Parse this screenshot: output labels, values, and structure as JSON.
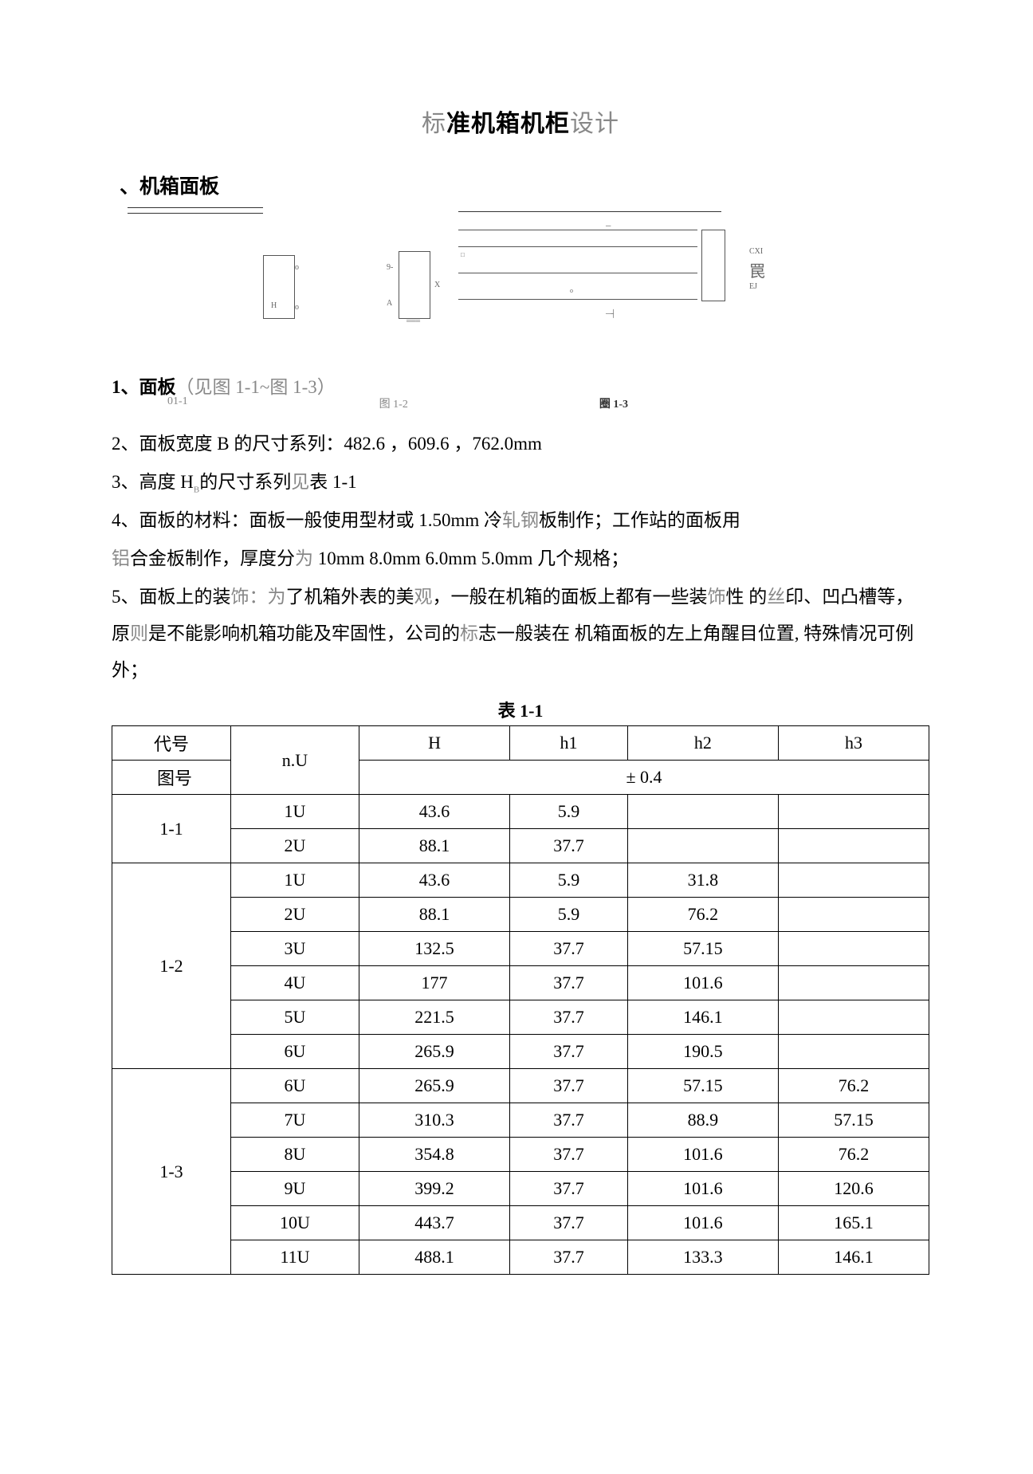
{
  "title": {
    "pre": "标",
    "bold1": "准机箱机柜",
    "post": "设计"
  },
  "section1": "、机箱面板",
  "figNote": {
    "p1": "1、面板",
    "p2": "（见图 1-1~图 1-3）"
  },
  "figCaptions": {
    "c1": "01-1",
    "c2": "图 1-2",
    "c3": "圈  1-3"
  },
  "diagLabels": {
    "l1": "H",
    "l2": "o",
    "l3": "o",
    "l4": "9-",
    "l5": "A",
    "l6": "X",
    "l7": "CXI",
    "l8": "罠",
    "l9": "EJ",
    "l10": "□",
    "l11": "o"
  },
  "para2": "2、面板宽度 B 的尺寸系列：482.6 ，609.6 ，762.0mm",
  "para3": {
    "a": "3、高度 H",
    "sub": "B",
    "b": "的尺寸系列见表 1-1"
  },
  "para4a": "4、面板的材料：面板一般使用型材或 1.50mm 冷",
  "para4b": "轧钢",
  "para4c": "板制作；工作站的面板用",
  "para4d_pre": "铝",
  "para4d": "合金板制作，厚度分",
  "para4d_mid": "为",
  "para4e": " 10mm 8.0mm 6.0mm 5.0mm 几个规格；",
  "para5a": "5、面板上的装",
  "para5b": "饰：为",
  "para5c": "了机箱外表的美",
  "para5c2": "观",
  "para5d": "，一般在机箱的面板上都有一些装",
  "para5e": "饰",
  "para5f": "性 的",
  "para5f2": "丝",
  "para5g": "印、凹凸槽等，原",
  "para5h": "则",
  "para5i": "是不能影响机箱功能及牢固性，公司的",
  "para5i2": "标",
  "para5j": "志一般装在 机箱面板的左上角醒目位置, 特殊情况可例外；",
  "tableCaption": "表 1-1",
  "headers": {
    "code": "代号",
    "fig": "图号",
    "nu": "n.U",
    "H": "H",
    "h1": "h1",
    "h2": "h2",
    "h3": "h3",
    "tol": "±  0.4"
  },
  "groups": [
    {
      "code": "1-1",
      "rows": [
        {
          "nu": "1U",
          "H": "43.6",
          "h1": "5.9",
          "h2": "",
          "h3": ""
        },
        {
          "nu": "2U",
          "H": "88.1",
          "h1": "37.7",
          "h2": "",
          "h3": ""
        }
      ]
    },
    {
      "code": "1-2",
      "rows": [
        {
          "nu": "1U",
          "H": "43.6",
          "h1": "5.9",
          "h2": "31.8",
          "h3": ""
        },
        {
          "nu": "2U",
          "H": "88.1",
          "h1": "5.9",
          "h2": "76.2",
          "h3": ""
        },
        {
          "nu": "3U",
          "H": "132.5",
          "h1": "37.7",
          "h2": "57.15",
          "h3": ""
        },
        {
          "nu": "4U",
          "H": "177",
          "h1": "37.7",
          "h2": "101.6",
          "h3": ""
        },
        {
          "nu": "5U",
          "H": "221.5",
          "h1": "37.7",
          "h2": "146.1",
          "h3": ""
        },
        {
          "nu": "6U",
          "H": "265.9",
          "h1": "37.7",
          "h2": "190.5",
          "h3": ""
        }
      ]
    },
    {
      "code": "1-3",
      "rows": [
        {
          "nu": "6U",
          "H": "265.9",
          "h1": "37.7",
          "h2": "57.15",
          "h3": "76.2"
        },
        {
          "nu": "7U",
          "H": "310.3",
          "h1": "37.7",
          "h2": "88.9",
          "h3": "57.15"
        },
        {
          "nu": "8U",
          "H": "354.8",
          "h1": "37.7",
          "h2": "101.6",
          "h3": "76.2"
        },
        {
          "nu": "9U",
          "H": "399.2",
          "h1": "37.7",
          "h2": "101.6",
          "h3": "120.6"
        },
        {
          "nu": "10U",
          "H": "443.7",
          "h1": "37.7",
          "h2": "101.6",
          "h3": "165.1"
        },
        {
          "nu": "11U",
          "H": "488.1",
          "h1": "37.7",
          "h2": "133.3",
          "h3": "146.1"
        }
      ]
    }
  ]
}
